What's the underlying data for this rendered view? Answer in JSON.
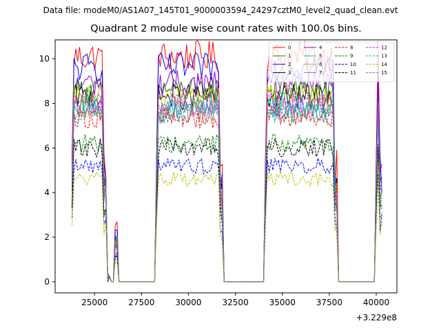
{
  "suptitle": "Data file: modeM0/AS1A07_145T01_9000003594_24297cztM0_level2_quad_clean.evt",
  "chart_data": {
    "type": "line",
    "title": "Quadrant 2 module wise count rates with 100.0s bins.",
    "xlabel": "",
    "ylabel": "",
    "x_offset_label": "+3.229e8",
    "xlim": [
      22900,
      41100
    ],
    "ylim": [
      -0.5,
      10.85
    ],
    "xticks": [
      25000,
      27500,
      30000,
      32500,
      35000,
      37500,
      40000
    ],
    "xtick_labels": [
      "25000",
      "27500",
      "30000",
      "32500",
      "35000",
      "37500",
      "40000"
    ],
    "yticks": [
      0,
      2,
      4,
      6,
      8,
      10
    ],
    "ytick_labels": [
      "0",
      "2",
      "4",
      "6",
      "8",
      "10"
    ],
    "grid": false,
    "legend_position": "top-right",
    "segments": [
      {
        "start": 23800,
        "end": 25600
      },
      {
        "start": 28300,
        "end": 31800
      },
      {
        "start": 34100,
        "end": 37900
      },
      {
        "start": 40000,
        "end": 40300
      }
    ],
    "gaps": [
      {
        "start": 25600,
        "end": 28300
      },
      {
        "start": 31800,
        "end": 34100
      },
      {
        "start": 37900,
        "end": 40000
      }
    ],
    "series": [
      {
        "name": "0",
        "color": "#ff0000",
        "dash": "solid",
        "level": 10.1
      },
      {
        "name": "1",
        "color": "#008000",
        "dash": "solid",
        "level": 8.6
      },
      {
        "name": "2",
        "color": "#0000ff",
        "dash": "solid",
        "level": 9.6
      },
      {
        "name": "3",
        "color": "#000000",
        "dash": "solid",
        "level": 8.3
      },
      {
        "name": "4",
        "color": "#9400d3",
        "dash": "solid",
        "level": 8.9
      },
      {
        "name": "5",
        "color": "#00bfbf",
        "dash": "solid",
        "level": 7.9
      },
      {
        "name": "6",
        "color": "#bfbf00",
        "dash": "solid",
        "level": 8.3
      },
      {
        "name": "7",
        "color": "#808080",
        "dash": "solid",
        "level": 7.6
      },
      {
        "name": "8",
        "color": "#ff0000",
        "dash": "dashed",
        "level": 7.4
      },
      {
        "name": "9",
        "color": "#008000",
        "dash": "dashed",
        "level": 6.2
      },
      {
        "name": "10",
        "color": "#0000ff",
        "dash": "dashed",
        "level": 5.2
      },
      {
        "name": "11",
        "color": "#000000",
        "dash": "dashed",
        "level": 6.0
      },
      {
        "name": "12",
        "color": "#ff00ff",
        "dash": "dashed",
        "level": 8.0
      },
      {
        "name": "13",
        "color": "#00bfbf",
        "dash": "dashed",
        "level": 7.6
      },
      {
        "name": "14",
        "color": "#bfbf00",
        "dash": "dashed",
        "level": 4.6
      },
      {
        "name": "15",
        "color": "#808080",
        "dash": "dashed",
        "level": 7.9
      }
    ]
  }
}
